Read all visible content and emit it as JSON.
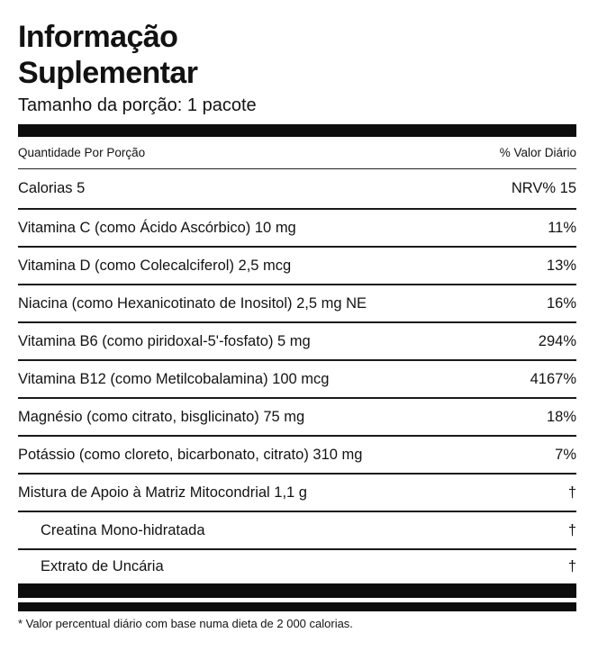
{
  "label": {
    "title_lines": [
      "Informação",
      "Suplementar"
    ],
    "serving_size": "Tamanho da porção: 1 pacote",
    "column_headers": {
      "left": "Quantidade Por Porção",
      "right": "% Valor Diário"
    },
    "calories_row": {
      "name": "Calorias 5",
      "value": "NRV% 15"
    },
    "rows": [
      {
        "name": "Vitamina C (como Ácido Ascórbico) 10 mg",
        "value": "11%"
      },
      {
        "name": "Vitamina D (como Colecalciferol) 2,5 mcg",
        "value": "13%"
      },
      {
        "name": "Niacina (como Hexanicotinato de Inositol) 2,5 mg NE",
        "value": "16%"
      },
      {
        "name": "Vitamina B6 (como piridoxal-5'-fosfato) 5 mg",
        "value": "294%"
      },
      {
        "name": "Vitamina B12 (como Metilcobalamina) 100 mcg",
        "value": "4167%"
      },
      {
        "name": "Magnésio (como citrato, bisglicinato) 75 mg",
        "value": "18%"
      },
      {
        "name": "Potássio (como cloreto, bicarbonato, citrato) 310 mg",
        "value": "7%"
      },
      {
        "name": "Mistura de Apoio à Matriz Mitocondrial 1,1 g",
        "value": "†"
      },
      {
        "name": "Creatina Mono-hidratada",
        "value": "†"
      },
      {
        "name": "Extrato de Uncária",
        "value": "†"
      }
    ],
    "footnote": "* Valor percentual diário com base numa dieta de 2 000 calorias.",
    "colors": {
      "text": "#131313",
      "divider": "#1a1a1a",
      "bar": "#0d0d0d",
      "background": "#ffffff"
    }
  }
}
